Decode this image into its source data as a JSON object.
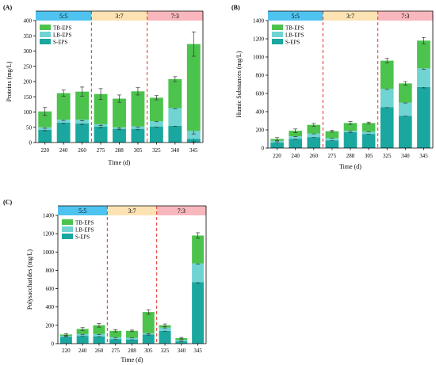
{
  "colors": {
    "s_eps": "#1aa79f",
    "lb_eps": "#6fd4d2",
    "tb_eps": "#4cc34c",
    "ratio_55": "#4fc3ef",
    "ratio_37": "#fde3b3",
    "ratio_73": "#f8b6bd",
    "divider": "#e2322b"
  },
  "chart_data": [
    {
      "type": "bar",
      "panel_label": "(A)",
      "ylabel": "Proteins (mg/L)",
      "xlabel": "Time (d)",
      "ylim": [
        0,
        400
      ],
      "yticks": [
        0,
        50,
        100,
        150,
        200,
        250,
        300,
        350,
        400
      ],
      "categories": [
        "220",
        "240",
        "260",
        "275",
        "288",
        "305",
        "325",
        "340",
        "345"
      ],
      "groups": [
        {
          "label": "5:5",
          "color": "#4fc3ef",
          "start": 0,
          "end": 2
        },
        {
          "label": "3:7",
          "color": "#fde3b3",
          "start": 3,
          "end": 5
        },
        {
          "label": "7:3",
          "color": "#f8b6bd",
          "start": 6,
          "end": 8
        }
      ],
      "legend": [
        "TB-EPS",
        "LB-EPS",
        "S-EPS"
      ],
      "series": [
        {
          "name": "S-EPS",
          "values": [
            42,
            65,
            63,
            52,
            45,
            45,
            52,
            55,
            12
          ]
        },
        {
          "name": "LB-EPS",
          "values": [
            8,
            10,
            12,
            8,
            5,
            8,
            18,
            58,
            26
          ]
        },
        {
          "name": "TB-EPS",
          "values": [
            52,
            87,
            92,
            99,
            94,
            115,
            77,
            95,
            285
          ]
        }
      ],
      "errors": [
        13,
        10,
        15,
        18,
        12,
        12,
        7,
        8,
        40
      ]
    },
    {
      "type": "bar",
      "panel_label": "(B)",
      "ylabel": "Humic Substances (mg/L)",
      "xlabel": "Time (d)",
      "ylim": [
        0,
        1400
      ],
      "yticks": [
        0,
        200,
        400,
        600,
        800,
        1000,
        1200,
        1400
      ],
      "categories": [
        "220",
        "240",
        "260",
        "275",
        "288",
        "305",
        "325",
        "340",
        "345"
      ],
      "groups": [
        {
          "label": "5:5",
          "color": "#4fc3ef",
          "start": 0,
          "end": 2
        },
        {
          "label": "3:7",
          "color": "#fde3b3",
          "start": 3,
          "end": 5
        },
        {
          "label": "7:3",
          "color": "#f8b6bd",
          "start": 6,
          "end": 8
        }
      ],
      "legend": [
        "TB-EPS",
        "LB-EPS",
        "S-EPS"
      ],
      "series": [
        {
          "name": "S-EPS",
          "values": [
            60,
            100,
            120,
            85,
            175,
            155,
            450,
            355,
            670
          ]
        },
        {
          "name": "LB-EPS",
          "values": [
            20,
            30,
            40,
            25,
            15,
            25,
            200,
            145,
            205
          ]
        },
        {
          "name": "TB-EPS",
          "values": [
            20,
            60,
            95,
            75,
            85,
            95,
            310,
            210,
            305
          ]
        }
      ],
      "errors": [
        15,
        20,
        15,
        10,
        15,
        10,
        25,
        20,
        35
      ]
    },
    {
      "type": "bar",
      "panel_label": "(C)",
      "ylabel": "Polysaccharides (mg/L)",
      "xlabel": "Time (d)",
      "ylim": [
        0,
        1400
      ],
      "yticks": [
        0,
        200,
        400,
        600,
        800,
        1000,
        1200,
        1400
      ],
      "categories": [
        "220",
        "240",
        "260",
        "275",
        "288",
        "305",
        "325",
        "340",
        "345"
      ],
      "groups": [
        {
          "label": "5:5",
          "color": "#4fc3ef",
          "start": 0,
          "end": 2
        },
        {
          "label": "3:7",
          "color": "#fde3b3",
          "start": 3,
          "end": 5
        },
        {
          "label": "7:3",
          "color": "#f8b6bd",
          "start": 6,
          "end": 8
        }
      ],
      "legend": [
        "TB-EPS",
        "LB-EPS",
        "S-EPS"
      ],
      "series": [
        {
          "name": "S-EPS",
          "values": [
            75,
            85,
            80,
            50,
            45,
            100,
            140,
            25,
            670
          ]
        },
        {
          "name": "LB-EPS",
          "values": [
            10,
            20,
            25,
            20,
            20,
            15,
            35,
            15,
            205
          ]
        },
        {
          "name": "TB-EPS",
          "values": [
            15,
            55,
            95,
            70,
            75,
            230,
            25,
            20,
            305
          ]
        }
      ],
      "errors": [
        10,
        15,
        20,
        12,
        8,
        25,
        15,
        8,
        30
      ]
    }
  ]
}
